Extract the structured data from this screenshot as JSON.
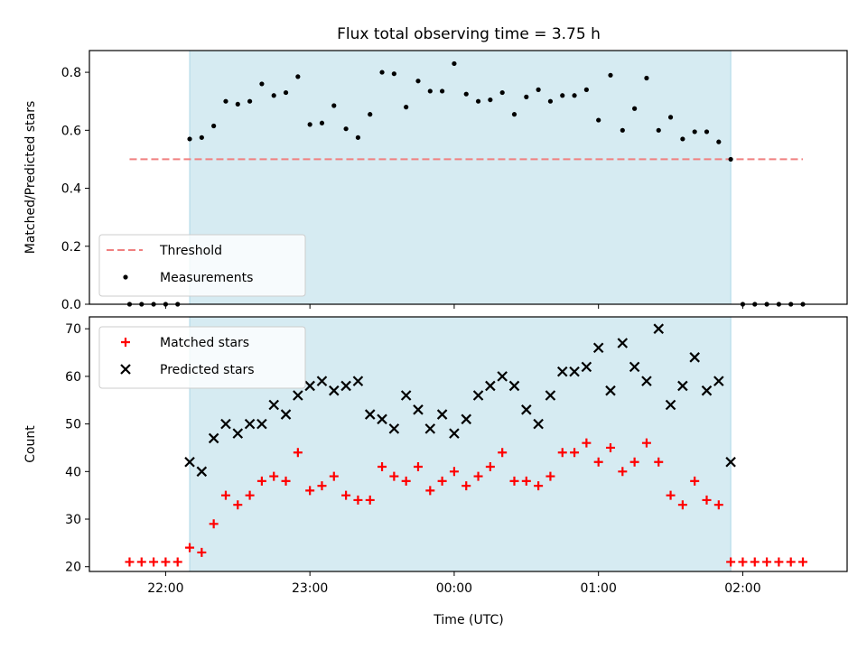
{
  "title": "Flux total observing time = 3.75 h",
  "xlabel": "Time (UTC)",
  "x_ticks": [
    "22:00",
    "23:00",
    "00:00",
    "01:00",
    "02:00"
  ],
  "x_tick_hours": [
    22,
    23,
    24,
    25,
    26
  ],
  "colors": {
    "span": "#add8e6",
    "threshold": "#f08080",
    "measurement": "#000000",
    "matched": "#ff0000",
    "predicted": "#000000"
  },
  "chart_data": [
    {
      "type": "scatter",
      "ylabel": "Matched/Predicted stars",
      "ylim": [
        0,
        0.875
      ],
      "y_ticks": [
        "0.0",
        "0.2",
        "0.4",
        "0.6",
        "0.8"
      ],
      "y_tick_values": [
        0,
        0.2,
        0.4,
        0.6,
        0.8
      ],
      "observing_span": [
        "22:10",
        "01:55"
      ],
      "legend": {
        "position": "lower-left",
        "entries": [
          "Threshold",
          "Measurements"
        ]
      },
      "threshold": {
        "name": "Threshold",
        "x_range": [
          "21:45",
          "02:25"
        ],
        "value": 0.5
      },
      "series": [
        {
          "name": "Measurements",
          "x": [
            "21:45",
            "21:50",
            "21:55",
            "22:00",
            "22:05",
            "22:10",
            "22:15",
            "22:20",
            "22:25",
            "22:30",
            "22:35",
            "22:40",
            "22:45",
            "22:50",
            "22:55",
            "23:00",
            "23:05",
            "23:10",
            "23:15",
            "23:20",
            "23:25",
            "23:30",
            "23:35",
            "23:40",
            "23:45",
            "23:50",
            "23:55",
            "00:00",
            "00:05",
            "00:10",
            "00:15",
            "00:20",
            "00:25",
            "00:30",
            "00:35",
            "00:40",
            "00:45",
            "00:50",
            "00:55",
            "01:00",
            "01:05",
            "01:10",
            "01:15",
            "01:20",
            "01:25",
            "01:30",
            "01:35",
            "01:40",
            "01:45",
            "01:50",
            "01:55",
            "02:00",
            "02:05",
            "02:10",
            "02:15",
            "02:20",
            "02:25"
          ],
          "values": [
            0,
            0,
            0,
            0,
            0,
            0.57,
            0.575,
            0.615,
            0.7,
            0.69,
            0.7,
            0.76,
            0.72,
            0.73,
            0.785,
            0.62,
            0.625,
            0.685,
            0.605,
            0.575,
            0.655,
            0.8,
            0.795,
            0.68,
            0.77,
            0.735,
            0.735,
            0.83,
            0.725,
            0.7,
            0.705,
            0.73,
            0.655,
            0.715,
            0.74,
            0.7,
            0.72,
            0.72,
            0.74,
            0.635,
            0.79,
            0.6,
            0.675,
            0.78,
            0.6,
            0.645,
            0.57,
            0.595,
            0.595,
            0.56,
            0.5,
            0,
            0,
            0,
            0,
            0,
            0
          ]
        }
      ]
    },
    {
      "type": "scatter",
      "ylabel": "Count",
      "ylim": [
        19,
        72.5
      ],
      "y_ticks": [
        "20",
        "30",
        "40",
        "50",
        "60",
        "70"
      ],
      "y_tick_values": [
        20,
        30,
        40,
        50,
        60,
        70
      ],
      "observing_span": [
        "22:10",
        "01:55"
      ],
      "legend": {
        "position": "upper-left",
        "entries": [
          "Matched stars",
          "Predicted stars"
        ]
      },
      "series": [
        {
          "name": "Matched stars",
          "marker": "+",
          "x": [
            "21:45",
            "21:50",
            "21:55",
            "22:00",
            "22:05",
            "22:10",
            "22:15",
            "22:20",
            "22:25",
            "22:30",
            "22:35",
            "22:40",
            "22:45",
            "22:50",
            "22:55",
            "23:00",
            "23:05",
            "23:10",
            "23:15",
            "23:20",
            "23:25",
            "23:30",
            "23:35",
            "23:40",
            "23:45",
            "23:50",
            "23:55",
            "00:00",
            "00:05",
            "00:10",
            "00:15",
            "00:20",
            "00:25",
            "00:30",
            "00:35",
            "00:40",
            "00:45",
            "00:50",
            "00:55",
            "01:00",
            "01:05",
            "01:10",
            "01:15",
            "01:20",
            "01:25",
            "01:30",
            "01:35",
            "01:40",
            "01:45",
            "01:50",
            "01:55",
            "02:00",
            "02:05",
            "02:10",
            "02:15",
            "02:20",
            "02:25"
          ],
          "values": [
            21,
            21,
            21,
            21,
            21,
            24,
            23,
            29,
            35,
            33,
            35,
            38,
            39,
            38,
            44,
            36,
            37,
            39,
            35,
            34,
            34,
            41,
            39,
            38,
            41,
            36,
            38,
            40,
            37,
            39,
            41,
            44,
            38,
            38,
            37,
            39,
            44,
            44,
            46,
            42,
            45,
            40,
            42,
            46,
            42,
            35,
            33,
            38,
            34,
            33,
            21,
            21,
            21,
            21,
            21,
            21,
            21
          ]
        },
        {
          "name": "Predicted stars",
          "marker": "x",
          "x": [
            "22:10",
            "22:15",
            "22:20",
            "22:25",
            "22:30",
            "22:35",
            "22:40",
            "22:45",
            "22:50",
            "22:55",
            "23:00",
            "23:05",
            "23:10",
            "23:15",
            "23:20",
            "23:25",
            "23:30",
            "23:35",
            "23:40",
            "23:45",
            "23:50",
            "23:55",
            "00:00",
            "00:05",
            "00:10",
            "00:15",
            "00:20",
            "00:25",
            "00:30",
            "00:35",
            "00:40",
            "00:45",
            "00:50",
            "00:55",
            "01:00",
            "01:05",
            "01:10",
            "01:15",
            "01:20",
            "01:25",
            "01:30",
            "01:35",
            "01:40",
            "01:45",
            "01:50",
            "01:55"
          ],
          "values": [
            42,
            40,
            47,
            50,
            48,
            50,
            50,
            54,
            52,
            56,
            58,
            59,
            57,
            58,
            59,
            52,
            51,
            49,
            56,
            53,
            49,
            52,
            48,
            51,
            56,
            58,
            60,
            58,
            53,
            50,
            56,
            61,
            61,
            62,
            66,
            57,
            67,
            62,
            59,
            70,
            54,
            58,
            64,
            57,
            59,
            42
          ]
        }
      ]
    }
  ]
}
